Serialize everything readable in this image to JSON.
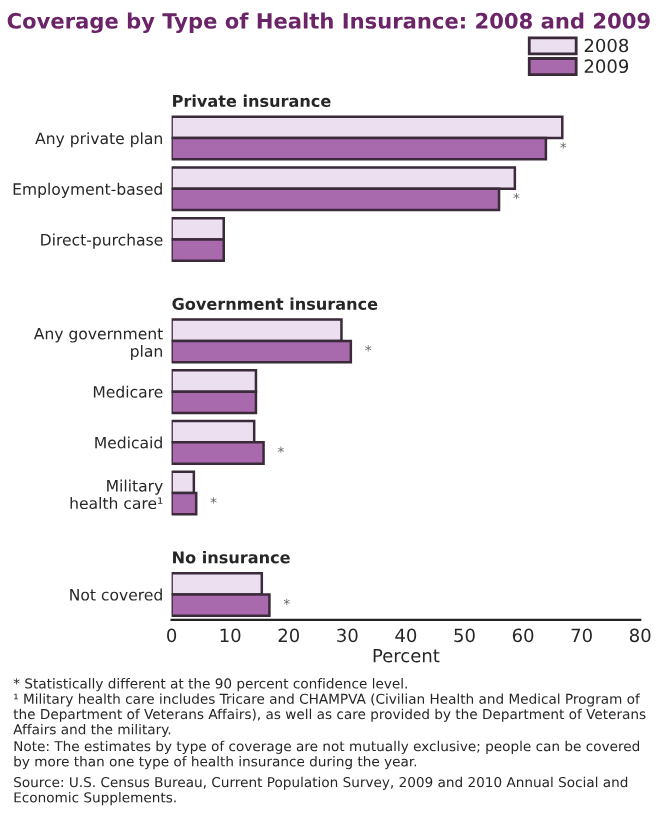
{
  "chart_data": {
    "type": "bar",
    "orientation": "horizontal",
    "title": "Coverage by Type of Health Insurance: 2008 and 2009",
    "xlabel": "Percent",
    "categories": [
      "Any private plan",
      "Employment-based",
      "Direct-purchase",
      null,
      "Any government\nplan",
      "Medicare",
      "Medicaid",
      "Military\nhealth care¹",
      null,
      "Not covered"
    ],
    "series": [
      {
        "name": "2008",
        "color": "#ebdff0",
        "values": [
          66.7,
          58.6,
          8.9,
          null,
          29.0,
          14.4,
          14.1,
          3.8,
          null,
          15.4
        ]
      },
      {
        "name": "2009",
        "color": "#a869ad",
        "values": [
          63.9,
          55.9,
          8.9,
          null,
          30.6,
          14.4,
          15.7,
          4.2,
          null,
          16.7
        ],
        "value_labels": [
          "*",
          "*",
          null,
          null,
          "*",
          null,
          "*",
          "*",
          null,
          "*"
        ]
      }
    ],
    "xlim": [
      0,
      80
    ],
    "xticks": [
      0,
      10,
      20,
      30,
      40,
      50,
      60,
      70,
      80
    ],
    "grid": false,
    "legend": "top right",
    "annotations": [
      "Private insurance",
      "Government insurance",
      "No insurance",
      "* Statistically different at the 90 percent confidence level.",
      "¹ Military health care includes Tricare and CHAMPVA (Civilian Health and Medical Program of the Department of Veterans Affairs), as well as care provided by the Department of Veterans Affairs and the military.",
      "Note: The estimates by type of coverage are not mutually exclusive; people can be covered by more than one type of health insurance during the year.",
      "Source: U.S. Census Bureau, Current Population Survey, 2009 and 2010 Annual Social and Economic Supplements."
    ]
  }
}
